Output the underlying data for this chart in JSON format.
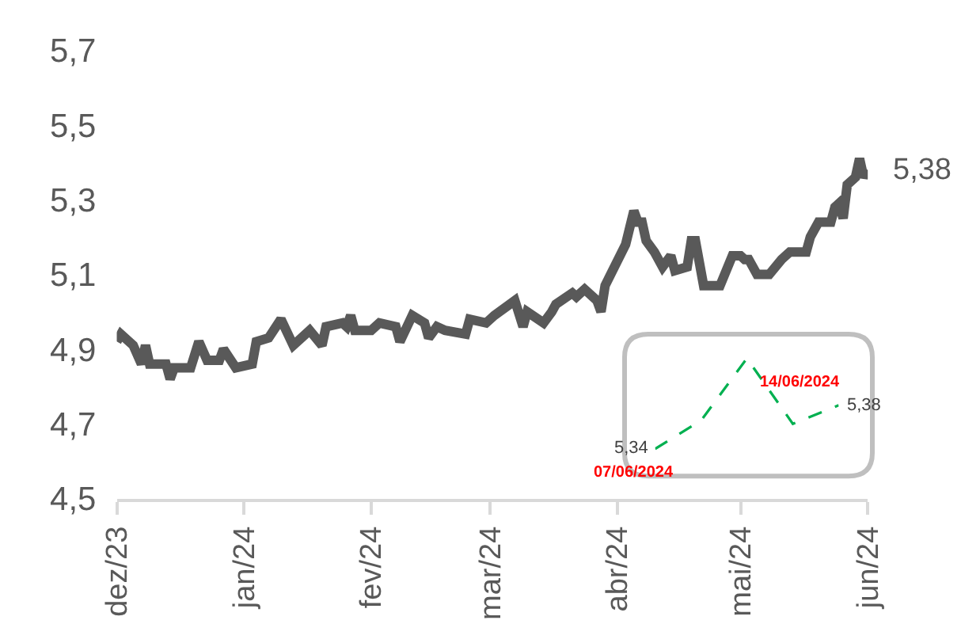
{
  "chart_data": [
    {
      "type": "line",
      "x": [
        "2023-12-14",
        "2023-12-15",
        "2023-12-18",
        "2023-12-20",
        "2023-12-21",
        "2023-12-22",
        "2023-12-26",
        "2023-12-27",
        "2023-12-28",
        "2024-01-01",
        "2024-01-03",
        "2024-01-05",
        "2024-01-08",
        "2024-01-09",
        "2024-01-12",
        "2024-01-16",
        "2024-01-17",
        "2024-01-20",
        "2024-01-23",
        "2024-01-26",
        "2024-01-30",
        "2024-02-02",
        "2024-02-03",
        "2024-02-07",
        "2024-02-08",
        "2024-02-09",
        "2024-02-10",
        "2024-02-14",
        "2024-02-16",
        "2024-02-20",
        "2024-02-21",
        "2024-02-24",
        "2024-02-27",
        "2024-02-28",
        "2024-03-01",
        "2024-03-03",
        "2024-03-08",
        "2024-03-09",
        "2024-03-13",
        "2024-03-15",
        "2024-03-20",
        "2024-03-22",
        "2024-03-23",
        "2024-03-27",
        "2024-03-29",
        "2024-03-30",
        "2024-04-03",
        "2024-04-04",
        "2024-04-06",
        "2024-04-09",
        "2024-04-10",
        "2024-04-11",
        "2024-04-16",
        "2024-04-18",
        "2024-04-19",
        "2024-04-20",
        "2024-04-21",
        "2024-04-23",
        "2024-04-25",
        "2024-04-27",
        "2024-04-28",
        "2024-05-01",
        "2024-05-02",
        "2024-05-03",
        "2024-05-05",
        "2024-05-09",
        "2024-05-12",
        "2024-05-14",
        "2024-05-15",
        "2024-05-16",
        "2024-05-18",
        "2024-05-21",
        "2024-05-24",
        "2024-05-26",
        "2024-05-30",
        "2024-05-31",
        "2024-06-02",
        "2024-06-05",
        "2024-06-06",
        "2024-06-07",
        "2024-06-08",
        "2024-06-09",
        "2024-06-11",
        "2024-06-12",
        "2024-06-13",
        "2024-06-14"
      ],
      "series": [
        {
          "color": "#595959",
          "values": [
            4.92,
            4.94,
            4.91,
            4.86,
            4.91,
            4.86,
            4.86,
            4.82,
            4.85,
            4.85,
            4.92,
            4.87,
            4.87,
            4.9,
            4.85,
            4.86,
            4.92,
            4.93,
            4.98,
            4.91,
            4.95,
            4.91,
            4.96,
            4.97,
            4.96,
            4.99,
            4.95,
            4.95,
            4.97,
            4.96,
            4.92,
            4.99,
            4.97,
            4.93,
            4.96,
            4.95,
            4.94,
            4.98,
            4.97,
            4.99,
            5.03,
            4.96,
            5.0,
            4.97,
            5.0,
            5.02,
            5.05,
            5.04,
            5.06,
            5.03,
            5.0,
            5.07,
            5.18,
            5.27,
            5.24,
            5.24,
            5.19,
            5.16,
            5.12,
            5.15,
            5.11,
            5.12,
            5.19,
            5.19,
            5.07,
            5.07,
            5.15,
            5.15,
            5.14,
            5.14,
            5.1,
            5.1,
            5.14,
            5.16,
            5.16,
            5.2,
            5.24,
            5.24,
            5.28,
            5.29,
            5.25,
            5.34,
            5.36,
            5.41,
            5.36,
            5.38
          ]
        }
      ],
      "xlim": [
        "2023-12-14",
        "2024-06-14"
      ],
      "xticks": [
        {
          "value": "2023-12-14",
          "label": "dez/23"
        },
        {
          "value": "2024-01-14",
          "label": "jan/24"
        },
        {
          "value": "2024-02-14",
          "label": "fev/24"
        },
        {
          "value": "2024-03-14",
          "label": "mar/24"
        },
        {
          "value": "2024-04-14",
          "label": "abr/24"
        },
        {
          "value": "2024-05-14",
          "label": "mai/24"
        },
        {
          "value": "2024-06-14",
          "label": "jun/24"
        }
      ],
      "ylim": [
        4.5,
        5.7
      ],
      "yticks": [
        {
          "value": 4.5,
          "label": "4,5"
        },
        {
          "value": 4.7,
          "label": "4,7"
        },
        {
          "value": 4.9,
          "label": "4,9"
        },
        {
          "value": 5.1,
          "label": "5,1"
        },
        {
          "value": 5.3,
          "label": "5,3"
        },
        {
          "value": 5.5,
          "label": "5,5"
        },
        {
          "value": 5.7,
          "label": "5,7"
        }
      ],
      "annotations": [
        {
          "text": "5,38",
          "x": "2024-06-14",
          "y": 5.38
        }
      ]
    },
    {
      "type": "line",
      "categories": [
        null,
        null,
        null,
        null,
        null
      ],
      "series": [
        {
          "color": "#00b050",
          "values": [
            5.34,
            5.366,
            5.423,
            5.363,
            5.38
          ],
          "value_labels": [
            "5,34",
            null,
            null,
            null,
            "5,38"
          ]
        }
      ],
      "line_style": "dashed",
      "annotations": [
        "07/06/2024",
        "14/06/2024"
      ]
    }
  ]
}
